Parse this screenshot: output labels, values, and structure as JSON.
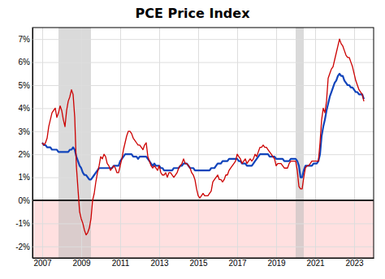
{
  "chart_data": {
    "type": "line",
    "title": "PCE Price Index",
    "x": [
      2007.0,
      2007.083,
      2007.167,
      2007.25,
      2007.333,
      2007.417,
      2007.5,
      2007.583,
      2007.667,
      2007.75,
      2007.833,
      2007.917,
      2008.0,
      2008.083,
      2008.167,
      2008.25,
      2008.333,
      2008.417,
      2008.5,
      2008.583,
      2008.667,
      2008.75,
      2008.833,
      2008.917,
      2009.0,
      2009.083,
      2009.167,
      2009.25,
      2009.333,
      2009.417,
      2009.5,
      2009.583,
      2009.667,
      2009.75,
      2009.833,
      2009.917,
      2010.0,
      2010.083,
      2010.167,
      2010.25,
      2010.333,
      2010.417,
      2010.5,
      2010.583,
      2010.667,
      2010.75,
      2010.833,
      2010.917,
      2011.0,
      2011.083,
      2011.167,
      2011.25,
      2011.333,
      2011.417,
      2011.5,
      2011.583,
      2011.667,
      2011.75,
      2011.833,
      2011.917,
      2012.0,
      2012.083,
      2012.167,
      2012.25,
      2012.333,
      2012.417,
      2012.5,
      2012.583,
      2012.667,
      2012.75,
      2012.833,
      2012.917,
      2013.0,
      2013.083,
      2013.167,
      2013.25,
      2013.333,
      2013.417,
      2013.5,
      2013.583,
      2013.667,
      2013.75,
      2013.833,
      2013.917,
      2014.0,
      2014.083,
      2014.167,
      2014.25,
      2014.333,
      2014.417,
      2014.5,
      2014.583,
      2014.667,
      2014.75,
      2014.833,
      2014.917,
      2015.0,
      2015.083,
      2015.167,
      2015.25,
      2015.333,
      2015.417,
      2015.5,
      2015.583,
      2015.667,
      2015.75,
      2015.833,
      2015.917,
      2016.0,
      2016.083,
      2016.167,
      2016.25,
      2016.333,
      2016.417,
      2016.5,
      2016.583,
      2016.667,
      2016.75,
      2016.833,
      2016.917,
      2017.0,
      2017.083,
      2017.167,
      2017.25,
      2017.333,
      2017.417,
      2017.5,
      2017.583,
      2017.667,
      2017.75,
      2017.833,
      2017.917,
      2018.0,
      2018.083,
      2018.167,
      2018.25,
      2018.333,
      2018.417,
      2018.5,
      2018.583,
      2018.667,
      2018.75,
      2018.833,
      2018.917,
      2019.0,
      2019.083,
      2019.167,
      2019.25,
      2019.333,
      2019.417,
      2019.5,
      2019.583,
      2019.667,
      2019.75,
      2019.833,
      2019.917,
      2020.0,
      2020.083,
      2020.167,
      2020.25,
      2020.333,
      2020.417,
      2020.5,
      2020.583,
      2020.667,
      2020.75,
      2020.833,
      2020.917,
      2021.0,
      2021.083,
      2021.167,
      2021.25,
      2021.333,
      2021.417,
      2021.5,
      2021.583,
      2021.667,
      2021.75,
      2021.833,
      2021.917,
      2022.0,
      2022.083,
      2022.167,
      2022.25,
      2022.333,
      2022.417,
      2022.5,
      2022.583,
      2022.667,
      2022.75,
      2022.833,
      2022.917,
      2023.0,
      2023.083,
      2023.167,
      2023.25,
      2023.333,
      2023.417,
      2023.5
    ],
    "series": [
      {
        "color": "#cc0000",
        "values": [
          2.5,
          2.4,
          2.5,
          2.7,
          3.2,
          3.5,
          3.8,
          3.9,
          4.0,
          3.6,
          3.8,
          4.1,
          3.9,
          3.5,
          3.2,
          3.9,
          4.3,
          4.5,
          4.8,
          4.6,
          3.6,
          1.5,
          0.5,
          -0.5,
          -0.8,
          -1.0,
          -1.3,
          -1.5,
          -1.4,
          -1.2,
          -0.8,
          0.0,
          0.3,
          0.8,
          1.2,
          1.5,
          1.9,
          1.8,
          2.0,
          1.9,
          1.6,
          1.5,
          1.3,
          1.4,
          1.5,
          1.4,
          1.2,
          1.2,
          1.5,
          1.8,
          2.2,
          2.5,
          2.8,
          3.0,
          3.0,
          2.9,
          2.7,
          2.6,
          2.5,
          2.4,
          2.4,
          2.3,
          2.2,
          2.4,
          2.5,
          1.9,
          1.7,
          1.5,
          1.4,
          1.5,
          1.4,
          1.3,
          1.5,
          1.2,
          1.1,
          1.1,
          1.2,
          1.0,
          1.2,
          1.2,
          1.1,
          1.0,
          1.1,
          1.2,
          1.4,
          1.5,
          1.6,
          1.8,
          1.6,
          1.6,
          1.5,
          1.4,
          1.2,
          1.1,
          0.9,
          0.5,
          0.2,
          0.1,
          0.2,
          0.3,
          0.2,
          0.2,
          0.2,
          0.3,
          0.4,
          0.8,
          0.9,
          1.0,
          1.1,
          0.9,
          0.9,
          0.8,
          0.9,
          1.1,
          1.1,
          1.3,
          1.4,
          1.5,
          1.6,
          1.7,
          2.0,
          1.9,
          1.8,
          1.6,
          1.7,
          1.8,
          1.6,
          1.7,
          1.8,
          1.7,
          1.8,
          2.0,
          1.9,
          2.1,
          2.3,
          2.3,
          2.4,
          2.3,
          2.3,
          2.2,
          2.1,
          2.0,
          1.9,
          1.8,
          1.5,
          1.6,
          1.6,
          1.6,
          1.5,
          1.4,
          1.4,
          1.4,
          1.6,
          1.7,
          1.7,
          1.7,
          1.7,
          1.3,
          0.6,
          0.5,
          0.5,
          1.0,
          1.4,
          1.5,
          1.5,
          1.6,
          1.7,
          1.7,
          1.7,
          1.7,
          1.7,
          2.5,
          3.5,
          4.0,
          3.8,
          4.3,
          5.3,
          5.5,
          5.7,
          5.8,
          6.1,
          6.4,
          6.7,
          7.0,
          6.8,
          6.7,
          6.5,
          6.3,
          6.2,
          6.2,
          6.0,
          5.8,
          5.5,
          5.2,
          5.0,
          4.8,
          4.7,
          4.6,
          4.3
        ]
      },
      {
        "color": "#1144bb",
        "values": [
          2.5,
          2.4,
          2.4,
          2.3,
          2.3,
          2.3,
          2.2,
          2.2,
          2.2,
          2.2,
          2.1,
          2.1,
          2.1,
          2.1,
          2.1,
          2.1,
          2.1,
          2.2,
          2.2,
          2.3,
          2.2,
          1.9,
          1.7,
          1.5,
          1.4,
          1.2,
          1.1,
          1.1,
          1.0,
          0.9,
          0.9,
          1.0,
          1.1,
          1.2,
          1.3,
          1.4,
          1.4,
          1.4,
          1.4,
          1.4,
          1.4,
          1.4,
          1.4,
          1.4,
          1.5,
          1.5,
          1.5,
          1.5,
          1.7,
          1.8,
          1.9,
          2.0,
          2.0,
          2.0,
          2.0,
          2.0,
          1.9,
          1.9,
          1.9,
          1.8,
          1.9,
          1.9,
          1.9,
          1.9,
          1.9,
          1.8,
          1.7,
          1.6,
          1.5,
          1.6,
          1.5,
          1.5,
          1.5,
          1.4,
          1.4,
          1.3,
          1.3,
          1.3,
          1.3,
          1.3,
          1.3,
          1.4,
          1.4,
          1.4,
          1.4,
          1.5,
          1.5,
          1.6,
          1.6,
          1.6,
          1.5,
          1.4,
          1.4,
          1.4,
          1.3,
          1.3,
          1.3,
          1.3,
          1.3,
          1.3,
          1.3,
          1.3,
          1.3,
          1.3,
          1.4,
          1.4,
          1.4,
          1.5,
          1.6,
          1.6,
          1.6,
          1.7,
          1.7,
          1.7,
          1.7,
          1.8,
          1.8,
          1.8,
          1.8,
          1.8,
          1.8,
          1.7,
          1.7,
          1.6,
          1.6,
          1.6,
          1.5,
          1.5,
          1.5,
          1.5,
          1.6,
          1.7,
          1.8,
          1.9,
          2.0,
          2.0,
          2.0,
          2.0,
          2.0,
          2.0,
          1.9,
          1.9,
          1.9,
          1.9,
          1.8,
          1.8,
          1.8,
          1.8,
          1.8,
          1.7,
          1.7,
          1.7,
          1.7,
          1.8,
          1.8,
          1.8,
          1.8,
          1.7,
          1.5,
          1.0,
          1.0,
          1.3,
          1.5,
          1.5,
          1.5,
          1.5,
          1.5,
          1.6,
          1.6,
          1.6,
          1.7,
          2.0,
          2.8,
          3.2,
          3.5,
          3.9,
          4.2,
          4.5,
          4.7,
          4.9,
          5.1,
          5.2,
          5.4,
          5.5,
          5.4,
          5.4,
          5.2,
          5.1,
          5.0,
          5.0,
          4.9,
          4.9,
          4.8,
          4.7,
          4.7,
          4.6,
          4.6,
          4.6,
          4.4
        ]
      }
    ],
    "xlim": [
      2006.5,
      2024.0
    ],
    "xticks": [
      2007,
      2009,
      2011,
      2013,
      2015,
      2017,
      2019,
      2021,
      2023
    ],
    "ylim": [
      -2.5,
      7.5
    ],
    "yticks": [
      {
        "value": -2,
        "label": "-2%"
      },
      {
        "value": -1,
        "label": "-1%"
      },
      {
        "value": 0,
        "label": "0%"
      },
      {
        "value": 1,
        "label": "1%"
      },
      {
        "value": 2,
        "label": "2%"
      },
      {
        "value": 3,
        "label": "3%"
      },
      {
        "value": 4,
        "label": "4%"
      },
      {
        "value": 5,
        "label": "5%"
      },
      {
        "value": 6,
        "label": "6%"
      },
      {
        "value": 7,
        "label": "7%"
      }
    ],
    "recession_bands": [
      [
        2007.833,
        2009.5
      ],
      [
        2020.0,
        2020.417
      ]
    ],
    "grid": true
  }
}
